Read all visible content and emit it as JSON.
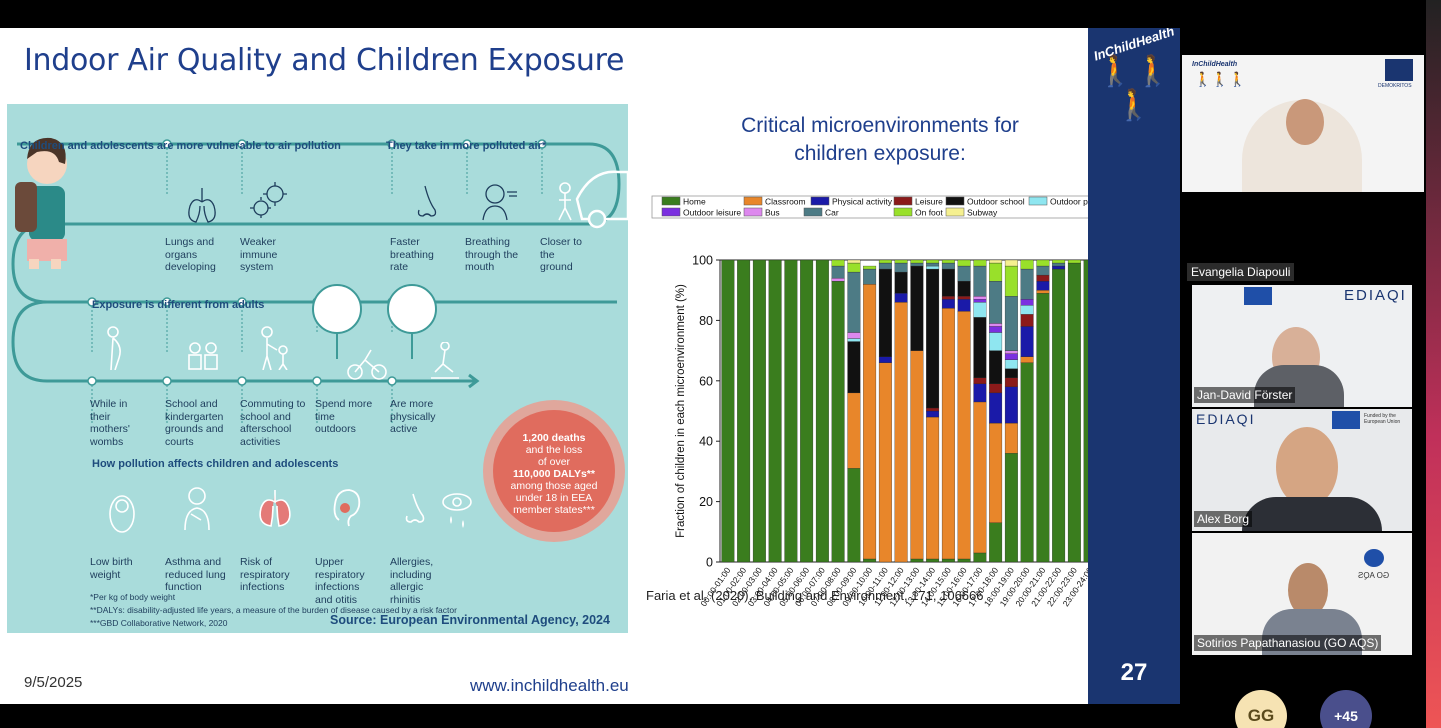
{
  "slide": {
    "title": "Indoor Air Quality and Children Exposure",
    "date": "9/5/2025",
    "url": "www.inchildhealth.eu",
    "page_number": "27",
    "brand": "InChildHealth"
  },
  "infographic": {
    "heading1": "Children and adolescents are more vulnerable to air pollution",
    "heading2": "They take in more polluted air*",
    "heading3": "Exposure is different from adults",
    "heading4": "How pollution affects children and adolescents",
    "row1": [
      {
        "text": "Lungs and organs developing",
        "icon": "lungs-icon"
      },
      {
        "text": "Weaker immune system",
        "icon": "virus-icon"
      },
      {
        "text": "Faster breathing rate",
        "icon": "nose-icon"
      },
      {
        "text": "Breathing through the mouth",
        "icon": "mouth-breathing-icon"
      },
      {
        "text": "Closer to the ground",
        "icon": "child-ground-icon"
      }
    ],
    "row2": [
      {
        "text": "While in their mothers' wombs",
        "icon": "pregnant-icon"
      },
      {
        "text": "School and kindergarten grounds and courts",
        "icon": "school-kids-icon"
      },
      {
        "text": "Commuting to school and afterschool activities",
        "icon": "commute-icon"
      },
      {
        "text": "Spend more time outdoors",
        "icon": "bicycle-icon"
      },
      {
        "text": "Are more physically active",
        "icon": "skateboard-icon"
      }
    ],
    "row3": [
      {
        "text": "Low birth weight",
        "icon": "baby-icon"
      },
      {
        "text": "Asthma and reduced lung function",
        "icon": "asthma-icon"
      },
      {
        "text": "Risk of respiratory infections",
        "icon": "infected-lungs-icon"
      },
      {
        "text": "Upper respiratory infections and otitis",
        "icon": "ear-icon"
      },
      {
        "text": "Allergies, including allergic rhinitis",
        "icon": "allergy-icon"
      }
    ],
    "stat_line1": "1,200 deaths",
    "stat_line2": "and the loss",
    "stat_line3": "of over",
    "stat_line4": "110,000 DALYs**",
    "stat_line5": "among those aged",
    "stat_line6": "under 18 in EEA",
    "stat_line7": "member states***",
    "note1": "*Per kg of body weight",
    "note2": "**DALYs: disability-adjusted life years, a measure of the burden of disease caused by a risk factor",
    "note3": "***GBD Collaborative Network, 2020",
    "source": "Source: European Environmental Agency, 2024"
  },
  "chart_title_line1": "Critical microenvironments for",
  "chart_title_line2": "children exposure:",
  "citation": "Faria et al. (2020), Building and Environment, 171, 106666",
  "chart_data": {
    "type": "bar",
    "stacked": true,
    "ylabel": "Fraction of children in each microenvironment (%)",
    "ylim": [
      0,
      100
    ],
    "yticks": [
      0,
      20,
      40,
      60,
      80,
      100
    ],
    "categories": [
      "00:00-01:00",
      "01:00-02:00",
      "02:00-03:00",
      "03:00-04:00",
      "04:00-05:00",
      "05:00-06:00",
      "06:00-07:00",
      "07:00-08:00",
      "08:00-09:00",
      "09:00-10:00",
      "10:00-11:00",
      "11:00-12:00",
      "12:00-13:00",
      "13:00-14:00",
      "14:00-15:00",
      "15:00-16:00",
      "16:00-17:00",
      "17:00-18:00",
      "18:00-19:00",
      "19:00-20:00",
      "20:00-21:00",
      "21:00-22:00",
      "22:00-23:00",
      "23:00-24:00"
    ],
    "series": [
      {
        "name": "Home",
        "color": "#3a7d1e",
        "values": [
          100,
          100,
          100,
          100,
          100,
          100,
          100,
          93,
          31,
          1,
          0,
          0,
          1,
          1,
          1,
          1,
          3,
          13,
          36,
          66,
          89,
          97,
          99,
          100
        ]
      },
      {
        "name": "Classroom",
        "color": "#e8862a",
        "values": [
          0,
          0,
          0,
          0,
          0,
          0,
          0,
          0,
          25,
          91,
          66,
          86,
          69,
          47,
          83,
          82,
          50,
          33,
          10,
          2,
          1,
          0,
          0,
          0
        ]
      },
      {
        "name": "Physical activity",
        "color": "#1a1aa8",
        "values": [
          0,
          0,
          0,
          0,
          0,
          0,
          0,
          0,
          0,
          0,
          2,
          3,
          0,
          2,
          3,
          4,
          6,
          10,
          12,
          10,
          3,
          1,
          0,
          0
        ]
      },
      {
        "name": "Leisure",
        "color": "#8b1a1a",
        "values": [
          0,
          0,
          0,
          0,
          0,
          0,
          0,
          0,
          0,
          0,
          0,
          0,
          0,
          1,
          1,
          1,
          2,
          3,
          3,
          4,
          2,
          0,
          0,
          0
        ]
      },
      {
        "name": "Outdoor school",
        "color": "#111111",
        "values": [
          0,
          0,
          0,
          0,
          0,
          0,
          0,
          0,
          17,
          0,
          29,
          7,
          28,
          46,
          9,
          5,
          20,
          11,
          3,
          0,
          0,
          0,
          0,
          0
        ]
      },
      {
        "name": "Outdoor physical activity",
        "color": "#8fe6f0",
        "values": [
          0,
          0,
          0,
          0,
          0,
          0,
          0,
          0,
          1,
          0,
          0,
          0,
          0,
          1,
          0,
          0,
          5,
          6,
          3,
          3,
          0,
          0,
          0,
          0
        ]
      },
      {
        "name": "Outdoor leisure",
        "color": "#7b2fe0",
        "values": [
          0,
          0,
          0,
          0,
          0,
          0,
          0,
          0,
          0,
          0,
          0,
          0,
          0,
          0,
          0,
          0,
          1,
          2,
          2,
          2,
          0,
          0,
          0,
          0
        ]
      },
      {
        "name": "Bus",
        "color": "#dd88ee",
        "values": [
          0,
          0,
          0,
          0,
          0,
          0,
          0,
          1,
          2,
          0,
          0,
          0,
          0,
          0,
          0,
          0,
          1,
          1,
          1,
          0,
          0,
          0,
          0,
          0
        ]
      },
      {
        "name": "Car",
        "color": "#4d7b85",
        "values": [
          0,
          0,
          0,
          0,
          0,
          0,
          0,
          4,
          20,
          5,
          2,
          3,
          1,
          1,
          2,
          5,
          10,
          14,
          18,
          10,
          3,
          1,
          0,
          0
        ]
      },
      {
        "name": "On foot",
        "color": "#99e02a",
        "values": [
          0,
          0,
          0,
          0,
          0,
          0,
          0,
          2,
          3,
          1,
          1,
          1,
          1,
          1,
          1,
          2,
          2,
          6,
          10,
          3,
          2,
          1,
          1,
          0
        ]
      },
      {
        "name": "Subway",
        "color": "#f5f090",
        "values": [
          0,
          0,
          0,
          0,
          0,
          0,
          0,
          0,
          1,
          0,
          0,
          0,
          0,
          0,
          0,
          0,
          0,
          1,
          2,
          0,
          0,
          0,
          0,
          0
        ]
      }
    ]
  },
  "participants": {
    "speaker_label": "Evangelia Diapouli",
    "p1": "Jan-David Förster",
    "p2": "Alex Borg",
    "p3": "Sotirios Papathanasiou (GO AQS)",
    "brand1": "InChildHealth",
    "brand2": "DEMOKRITOS",
    "brand3": "EDIAQI",
    "brand4": "GO AQS",
    "eu_funded": "Funded by the European Union",
    "avatar_initials": "GG",
    "more_count": "+45"
  }
}
